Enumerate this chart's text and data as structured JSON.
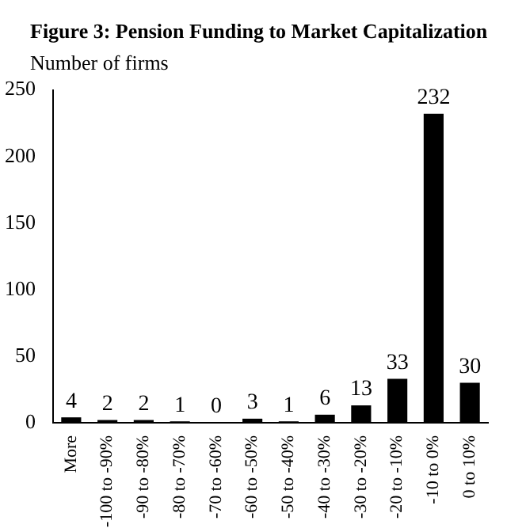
{
  "chart_data": {
    "type": "bar",
    "title": "Figure 3: Pension Funding to Market Capitalization",
    "ylabel": "Number of firms",
    "categories": [
      "More",
      "-100 to -90%",
      "-90 to -80%",
      "-80 to -70%",
      "-70 to -60%",
      "-60 to -50%",
      "-50 to -40%",
      "-40 to -30%",
      "-30 to -20%",
      "-20 to -10%",
      "-10 to 0%",
      "0 to 10%"
    ],
    "values": [
      4,
      2,
      2,
      1,
      0,
      3,
      1,
      6,
      13,
      33,
      232,
      30
    ],
    "color": "#000000",
    "ylim": [
      0,
      250
    ],
    "yticks": [
      0,
      50,
      100,
      150,
      200,
      250
    ],
    "grid": false,
    "data_labels": true
  }
}
